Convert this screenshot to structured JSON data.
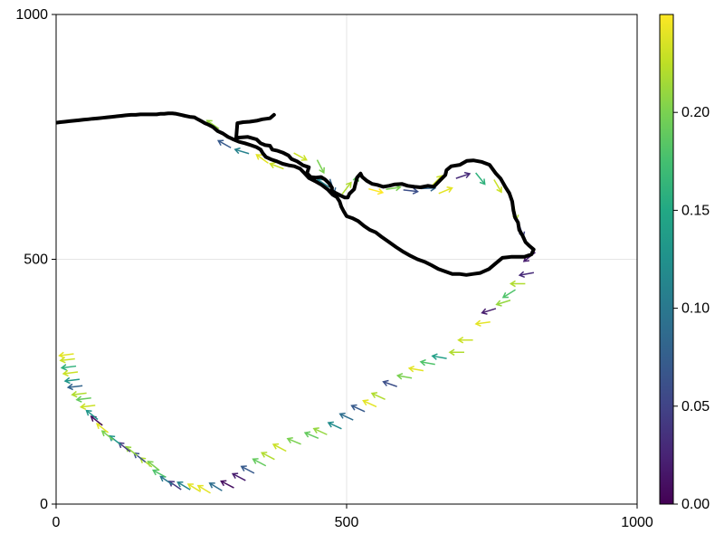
{
  "chart_data": {
    "type": "line+quiver",
    "title": "",
    "xlabel": "",
    "ylabel": "",
    "xlim": [
      0,
      1000
    ],
    "ylim": [
      0,
      1000
    ],
    "xticks": [
      "0",
      "500",
      "1000"
    ],
    "yticks": [
      "0",
      "500",
      "1000"
    ],
    "grid": true,
    "trajectory": [
      [
        375,
        795
      ],
      [
        368,
        788
      ],
      [
        355,
        786
      ],
      [
        345,
        783
      ],
      [
        333,
        781
      ],
      [
        322,
        780
      ],
      [
        312,
        778
      ],
      [
        310,
        748
      ],
      [
        330,
        750
      ],
      [
        345,
        745
      ],
      [
        352,
        737
      ],
      [
        360,
        733
      ],
      [
        368,
        732
      ],
      [
        372,
        724
      ],
      [
        380,
        722
      ],
      [
        390,
        718
      ],
      [
        400,
        712
      ],
      [
        405,
        705
      ],
      [
        415,
        700
      ],
      [
        425,
        692
      ],
      [
        435,
        688
      ],
      [
        432,
        676
      ],
      [
        438,
        668
      ],
      [
        447,
        667
      ],
      [
        456,
        668
      ],
      [
        463,
        663
      ],
      [
        470,
        655
      ],
      [
        475,
        646
      ],
      [
        474,
        640
      ],
      [
        482,
        635
      ],
      [
        490,
        630
      ],
      [
        497,
        626
      ],
      [
        502,
        626
      ],
      [
        505,
        634
      ],
      [
        513,
        643
      ],
      [
        515,
        653
      ],
      [
        518,
        667
      ],
      [
        524,
        675
      ],
      [
        527,
        668
      ],
      [
        535,
        660
      ],
      [
        544,
        654
      ],
      [
        553,
        652
      ],
      [
        563,
        648
      ],
      [
        573,
        650
      ],
      [
        583,
        653
      ],
      [
        595,
        654
      ],
      [
        605,
        650
      ],
      [
        617,
        648
      ],
      [
        627,
        647
      ],
      [
        640,
        650
      ],
      [
        650,
        648
      ],
      [
        660,
        660
      ],
      [
        670,
        672
      ],
      [
        672,
        682
      ],
      [
        680,
        690
      ],
      [
        695,
        693
      ],
      [
        707,
        701
      ],
      [
        718,
        702
      ],
      [
        732,
        699
      ],
      [
        746,
        693
      ],
      [
        757,
        675
      ],
      [
        765,
        665
      ],
      [
        773,
        648
      ],
      [
        780,
        635
      ],
      [
        785,
        618
      ],
      [
        787,
        600
      ],
      [
        790,
        585
      ],
      [
        795,
        575
      ],
      [
        797,
        560
      ],
      [
        803,
        548
      ],
      [
        808,
        535
      ],
      [
        815,
        527
      ],
      [
        822,
        520
      ],
      [
        818,
        510
      ],
      [
        806,
        505
      ],
      [
        795,
        505
      ],
      [
        783,
        505
      ],
      [
        768,
        503
      ],
      [
        757,
        492
      ],
      [
        745,
        480
      ],
      [
        730,
        472
      ],
      [
        718,
        470
      ],
      [
        706,
        468
      ],
      [
        694,
        470
      ],
      [
        682,
        470
      ],
      [
        670,
        475
      ],
      [
        658,
        480
      ],
      [
        646,
        488
      ],
      [
        634,
        495
      ],
      [
        622,
        500
      ],
      [
        610,
        507
      ],
      [
        598,
        515
      ],
      [
        585,
        525
      ],
      [
        572,
        536
      ],
      [
        560,
        546
      ],
      [
        550,
        555
      ],
      [
        540,
        560
      ],
      [
        530,
        568
      ],
      [
        520,
        578
      ],
      [
        510,
        584
      ],
      [
        500,
        588
      ],
      [
        495,
        598
      ],
      [
        491,
        607
      ],
      [
        488,
        618
      ],
      [
        483,
        627
      ],
      [
        476,
        632
      ],
      [
        468,
        642
      ],
      [
        457,
        652
      ],
      [
        445,
        660
      ],
      [
        435,
        666
      ],
      [
        428,
        675
      ],
      [
        420,
        685
      ],
      [
        410,
        690
      ],
      [
        400,
        692
      ],
      [
        390,
        695
      ],
      [
        380,
        700
      ],
      [
        370,
        704
      ],
      [
        361,
        709
      ],
      [
        356,
        716
      ],
      [
        352,
        724
      ],
      [
        345,
        729
      ],
      [
        335,
        733
      ],
      [
        325,
        737
      ],
      [
        315,
        740
      ],
      [
        305,
        745
      ],
      [
        296,
        750
      ],
      [
        287,
        757
      ],
      [
        278,
        762
      ],
      [
        270,
        770
      ],
      [
        262,
        775
      ],
      [
        256,
        778
      ],
      [
        250,
        782
      ],
      [
        244,
        786
      ],
      [
        238,
        790
      ],
      [
        230,
        791
      ],
      [
        222,
        793
      ],
      [
        215,
        795
      ],
      [
        207,
        797
      ],
      [
        200,
        798
      ],
      [
        193,
        798
      ],
      [
        186,
        797
      ],
      [
        179,
        797
      ],
      [
        173,
        796
      ],
      [
        166,
        796
      ],
      [
        160,
        796
      ],
      [
        153,
        796
      ],
      [
        145,
        796
      ],
      [
        137,
        795
      ],
      [
        129,
        795
      ],
      [
        120,
        794
      ],
      [
        112,
        793
      ],
      [
        104,
        792
      ],
      [
        96,
        791
      ],
      [
        88,
        790
      ],
      [
        80,
        789
      ],
      [
        72,
        788
      ],
      [
        63,
        787
      ],
      [
        55,
        786
      ],
      [
        47,
        785
      ],
      [
        39,
        784
      ],
      [
        31,
        783
      ],
      [
        23,
        782
      ],
      [
        15,
        781
      ],
      [
        7,
        780
      ],
      [
        0,
        779
      ]
    ],
    "arrows": [
      [
        270,
        775,
        0.21
      ],
      [
        290,
        735,
        0.07
      ],
      [
        320,
        720,
        0.11
      ],
      [
        355,
        705,
        0.24
      ],
      [
        380,
        690,
        0.23
      ],
      [
        420,
        710,
        0.23
      ],
      [
        455,
        690,
        0.2
      ],
      [
        460,
        655,
        0.11
      ],
      [
        475,
        650,
        0.08
      ],
      [
        500,
        645,
        0.22
      ],
      [
        515,
        655,
        0.19
      ],
      [
        550,
        640,
        0.25
      ],
      [
        580,
        645,
        0.2
      ],
      [
        610,
        640,
        0.06
      ],
      [
        640,
        645,
        0.08
      ],
      [
        655,
        660,
        0.23
      ],
      [
        670,
        640,
        0.24
      ],
      [
        700,
        670,
        0.03
      ],
      [
        730,
        665,
        0.16
      ],
      [
        760,
        650,
        0.23
      ],
      [
        790,
        595,
        0.22
      ],
      [
        800,
        560,
        0.05
      ],
      [
        815,
        505,
        0.02
      ],
      [
        810,
        470,
        0.03
      ],
      [
        795,
        450,
        0.22
      ],
      [
        780,
        430,
        0.18
      ],
      [
        770,
        412,
        0.21
      ],
      [
        745,
        395,
        0.02
      ],
      [
        735,
        370,
        0.24
      ],
      [
        705,
        335,
        0.23
      ],
      [
        690,
        310,
        0.22
      ],
      [
        660,
        300,
        0.14
      ],
      [
        640,
        288,
        0.18
      ],
      [
        620,
        275,
        0.24
      ],
      [
        600,
        260,
        0.2
      ],
      [
        575,
        245,
        0.06
      ],
      [
        555,
        220,
        0.22
      ],
      [
        540,
        205,
        0.24
      ],
      [
        520,
        195,
        0.07
      ],
      [
        500,
        178,
        0.09
      ],
      [
        480,
        160,
        0.12
      ],
      [
        455,
        148,
        0.21
      ],
      [
        440,
        140,
        0.19
      ],
      [
        410,
        128,
        0.2
      ],
      [
        385,
        115,
        0.23
      ],
      [
        365,
        98,
        0.22
      ],
      [
        350,
        85,
        0.19
      ],
      [
        330,
        70,
        0.07
      ],
      [
        315,
        55,
        0.02
      ],
      [
        295,
        40,
        0.01
      ],
      [
        275,
        35,
        0.09
      ],
      [
        255,
        30,
        0.24
      ],
      [
        238,
        33,
        0.24
      ],
      [
        220,
        37,
        0.11
      ],
      [
        205,
        38,
        0.04
      ],
      [
        190,
        48,
        0.1
      ],
      [
        178,
        62,
        0.18
      ],
      [
        168,
        78,
        0.2
      ],
      [
        155,
        85,
        0.22
      ],
      [
        144,
        95,
        0.06
      ],
      [
        130,
        108,
        0.21
      ],
      [
        118,
        116,
        0.04
      ],
      [
        102,
        130,
        0.13
      ],
      [
        89,
        140,
        0.2
      ],
      [
        80,
        155,
        0.24
      ],
      [
        70,
        170,
        0.01
      ],
      [
        62,
        182,
        0.13
      ],
      [
        55,
        200,
        0.23
      ],
      [
        48,
        215,
        0.19
      ],
      [
        40,
        225,
        0.22
      ],
      [
        33,
        240,
        0.08
      ],
      [
        28,
        253,
        0.13
      ],
      [
        25,
        268,
        0.23
      ],
      [
        22,
        280,
        0.16
      ],
      [
        20,
        295,
        0.23
      ],
      [
        18,
        305,
        0.24
      ]
    ],
    "colorbar": {
      "colormap": "viridis",
      "range": [
        0,
        0.25
      ],
      "ticks": [
        "0.00",
        "0.05",
        "0.10",
        "0.15",
        "0.20"
      ]
    }
  }
}
